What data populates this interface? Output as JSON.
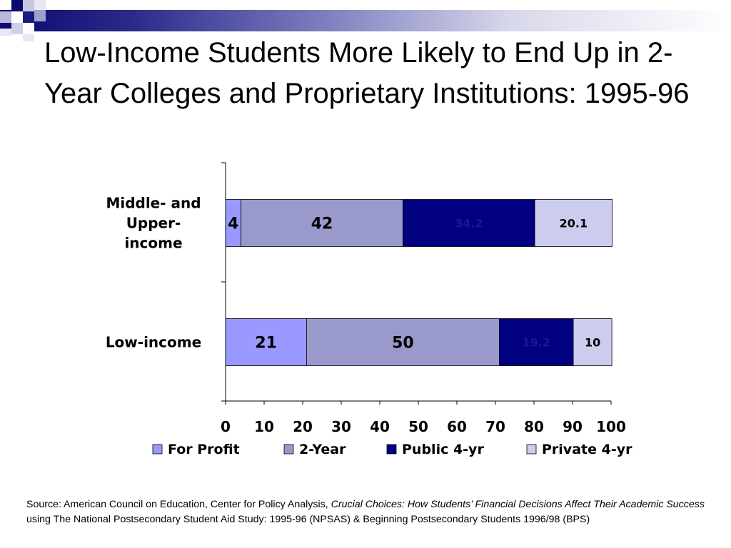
{
  "slide": {
    "title": "Low-Income Students More Likely to End Up in 2-Year Colleges and Proprietary Institutions: 1995-96"
  },
  "source": {
    "prefix": "Source: American Council on Education, Center for Policy Analysis,",
    "italic": "Crucial Choices: How Students’ Financial Decisions Affect Their Academic Success",
    "suffix": "using The National Postsecondary Student Aid Study: 1995-96 (NPSAS) & Beginning Postsecondary Students 1996/98 (BPS)"
  },
  "colors": {
    "header_dark": "#0a0a6e",
    "for_profit": "#9999ff",
    "two_year": "#9999cc",
    "public_4yr": "#000080",
    "private_4yr": "#ccccee"
  },
  "chart_data": {
    "type": "bar",
    "orientation": "horizontal",
    "stacked": true,
    "categories": [
      "Middle- and Upper-income",
      "Low-income"
    ],
    "category_label_lines": [
      [
        "Middle- and",
        "Upper-",
        "income"
      ],
      [
        "Low-income"
      ]
    ],
    "series": [
      {
        "name": "For Profit",
        "color": "#9999ff",
        "values": [
          4,
          21
        ],
        "labels": [
          "4",
          "21"
        ]
      },
      {
        "name": "2-Year",
        "color": "#9999cc",
        "values": [
          42,
          50
        ],
        "labels": [
          "42",
          "50"
        ]
      },
      {
        "name": "Public 4-yr",
        "color": "#000080",
        "values": [
          34.2,
          19.2
        ],
        "labels": [
          "34.2",
          "19.2"
        ]
      },
      {
        "name": "Private 4-yr",
        "color": "#ccccee",
        "values": [
          20.1,
          10
        ],
        "labels": [
          "20.1",
          "10"
        ]
      }
    ],
    "xlim": [
      0,
      100
    ],
    "xticks": [
      "0",
      "10",
      "20",
      "30",
      "40",
      "50",
      "60",
      "70",
      "80",
      "90",
      "100"
    ],
    "grid": false,
    "legend_position": "bottom"
  }
}
